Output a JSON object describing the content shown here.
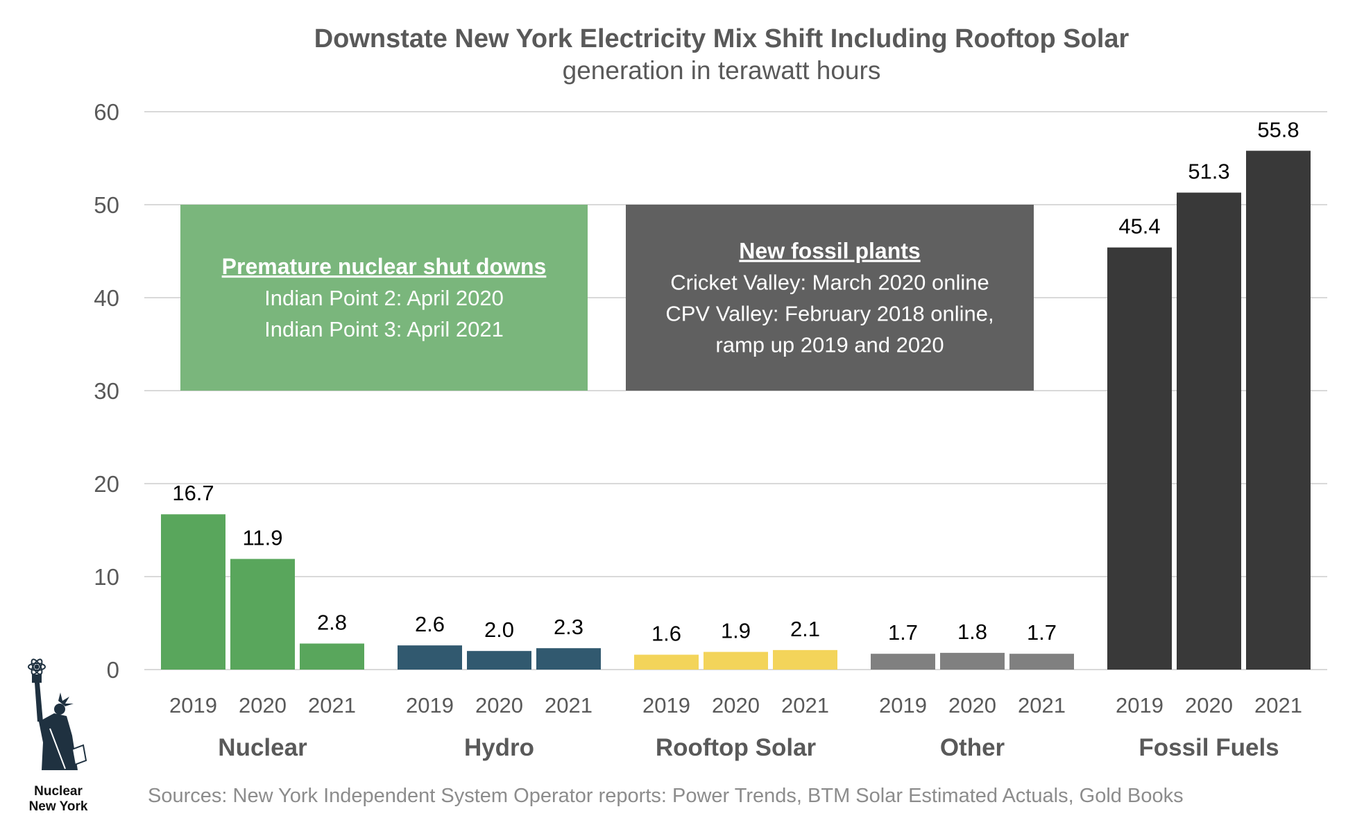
{
  "chart_data": {
    "type": "bar",
    "title": "Downstate New York Electricity Mix Shift Including Rooftop Solar",
    "subtitle": "generation in terawatt hours",
    "ylim": [
      0,
      60
    ],
    "yticks": [
      "0",
      "10",
      "20",
      "30",
      "40",
      "50",
      "60"
    ],
    "grid": true,
    "groups": [
      {
        "name": "Nuclear",
        "color": "#59a65c",
        "years": [
          "2019",
          "2020",
          "2021"
        ],
        "values": [
          16.7,
          11.9,
          2.8
        ],
        "labels": [
          "16.7",
          "11.9",
          "2.8"
        ]
      },
      {
        "name": "Hydro",
        "color": "#31596f",
        "years": [
          "2019",
          "2020",
          "2021"
        ],
        "values": [
          2.6,
          2.0,
          2.3
        ],
        "labels": [
          "2.6",
          "2.0",
          "2.3"
        ]
      },
      {
        "name": "Rooftop Solar",
        "color": "#f3d45a",
        "years": [
          "2019",
          "2020",
          "2021"
        ],
        "values": [
          1.6,
          1.9,
          2.1
        ],
        "labels": [
          "1.6",
          "1.9",
          "2.1"
        ]
      },
      {
        "name": "Other",
        "color": "#808080",
        "years": [
          "2019",
          "2020",
          "2021"
        ],
        "values": [
          1.7,
          1.8,
          1.7
        ],
        "labels": [
          "1.7",
          "1.8",
          "1.7"
        ]
      },
      {
        "name": "Fossil Fuels",
        "color": "#393939",
        "years": [
          "2019",
          "2020",
          "2021"
        ],
        "values": [
          45.4,
          51.3,
          55.8
        ],
        "labels": [
          "45.4",
          "51.3",
          "55.8"
        ]
      }
    ],
    "annotations": [
      {
        "heading": "Premature nuclear shut downs",
        "lines": [
          "Indian Point 2: April 2020",
          "Indian Point 3: April 2021"
        ],
        "color": "#7ab67c",
        "y_range": [
          30,
          50
        ]
      },
      {
        "heading": "New fossil plants",
        "lines": [
          "Cricket Valley: March 2020 online",
          "CPV Valley: February 2018 online,",
          "ramp up 2019 and 2020"
        ],
        "color": "#606060",
        "y_range": [
          30,
          50
        ]
      }
    ],
    "source": "Sources: New York Independent System Operator reports: Power Trends, BTM Solar Estimated Actuals, Gold Books"
  },
  "logo": {
    "text_lines": [
      "Nuclear",
      "New York"
    ],
    "icon": "statue-of-liberty-atom-torch-icon"
  }
}
